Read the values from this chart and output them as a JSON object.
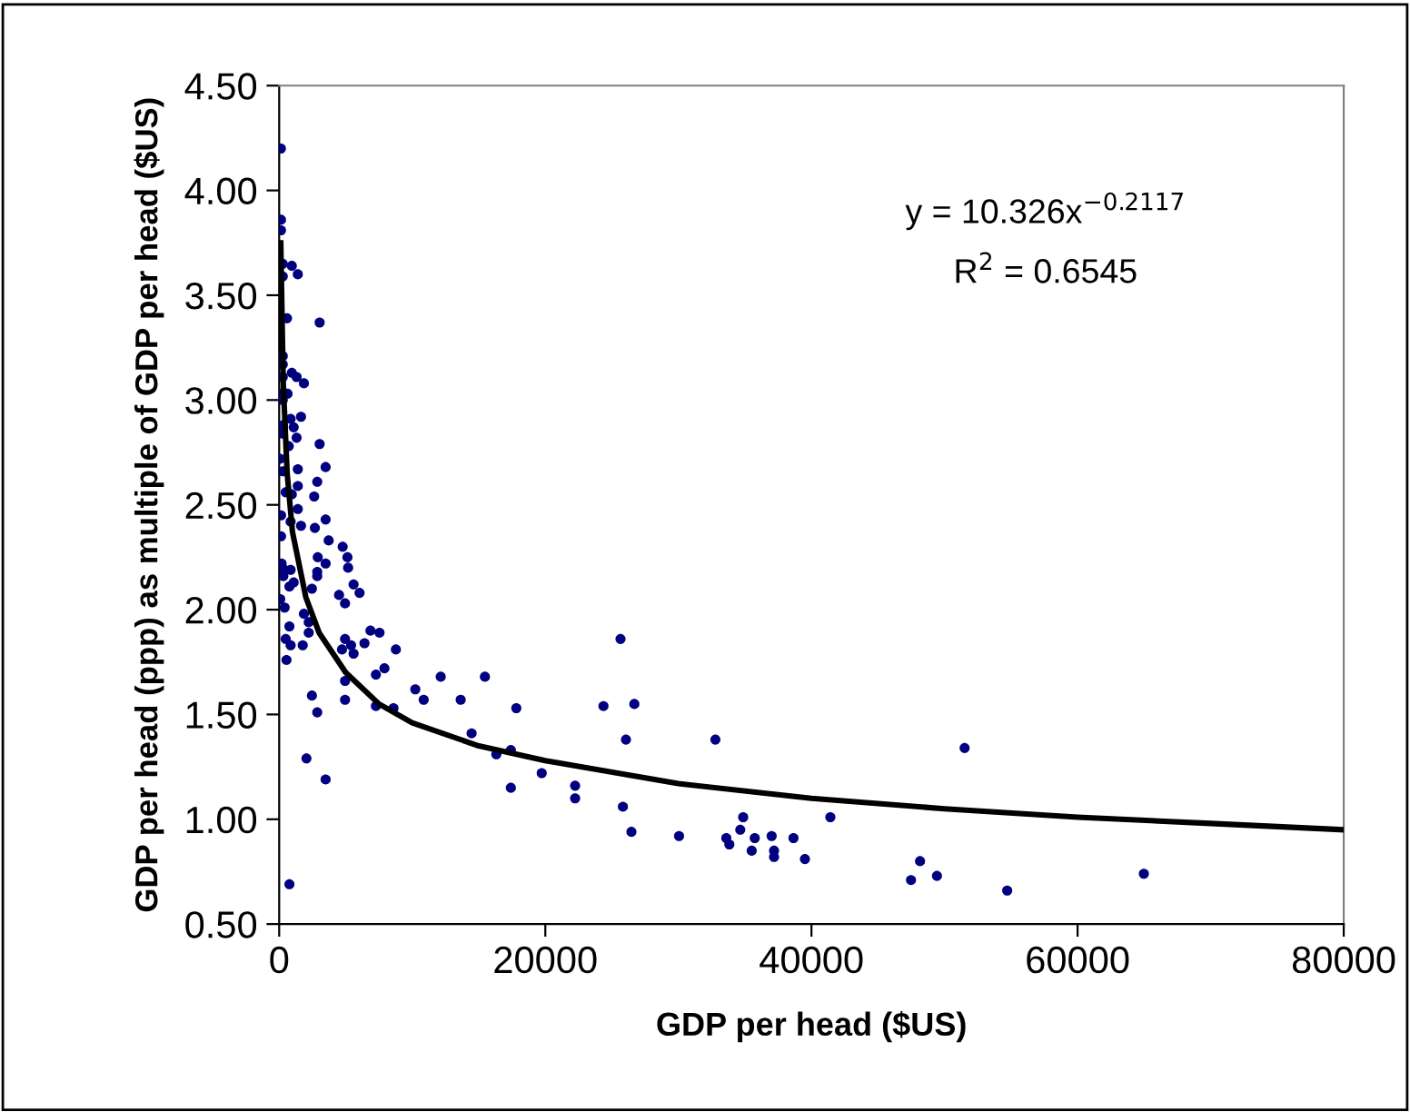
{
  "chart_data": {
    "type": "scatter",
    "xlabel": "GDP per head ($US)",
    "ylabel": "GDP per head (ppp) as multiple of GDP per head ($US)",
    "xlim": [
      0,
      80000
    ],
    "xticks": [
      0,
      20000,
      40000,
      60000,
      80000
    ],
    "ylim": [
      0.5,
      4.5
    ],
    "yticks": [
      {
        "value": 0.5,
        "label": "0.50"
      },
      {
        "value": 1.0,
        "label": "1.00"
      },
      {
        "value": 1.5,
        "label": "1.50"
      },
      {
        "value": 2.0,
        "label": "2.00"
      },
      {
        "value": 2.5,
        "label": "2.50"
      },
      {
        "value": 3.0,
        "label": "3.00"
      },
      {
        "value": 3.5,
        "label": "3.50"
      },
      {
        "value": 4.0,
        "label": "4.00"
      },
      {
        "value": 4.5,
        "label": "4.50"
      }
    ],
    "grid": false,
    "legend": false,
    "marker": "circle",
    "annotations": [
      "y = 10.326x$^{−0.2117}$",
      "R$^{2}$ = 0.6545"
    ],
    "series": [
      {
        "color": "#000080",
        "x": [
          130,
          136,
          136,
          270,
          950,
          1400,
          270,
          590,
          3040,
          270,
          270,
          270,
          950,
          1310,
          1860,
          40,
          630,
          270,
          860,
          1640,
          270,
          270,
          1090,
          1310,
          720,
          3040,
          80,
          3490,
          270,
          1400,
          2860,
          1400,
          490,
          2630,
          950,
          140,
          1400,
          3490,
          860,
          1640,
          2680,
          3720,
          140,
          4770,
          5130,
          5180,
          2900,
          3490,
          2860,
          2860,
          180,
          410,
          860,
          310,
          1090,
          770,
          2460,
          5590,
          6040,
          4500,
          4950,
          80,
          410,
          1860,
          2220,
          770,
          2220,
          6860,
          7540,
          490,
          860,
          4950,
          6410,
          5400,
          4720,
          5590,
          8770,
          1770,
          550,
          7910,
          7270,
          4950,
          10230,
          12140,
          15460,
          10860,
          13640,
          4950,
          2460,
          7270,
          8590,
          2860,
          17820,
          24370,
          14460,
          16320,
          17410,
          2050,
          19730,
          3490,
          17410,
          22240,
          22240,
          770,
          25650,
          26690,
          26060,
          32780,
          51510,
          25830,
          26470,
          30050,
          33600,
          33830,
          34650,
          34870,
          35740,
          35510,
          37010,
          37190,
          37190,
          38650,
          39510,
          41420,
          48160,
          47480,
          49430,
          54710,
          64980
        ],
        "values": [
          4.2,
          3.86,
          3.81,
          3.65,
          3.64,
          3.6,
          3.59,
          3.39,
          3.37,
          3.21,
          3.17,
          3.11,
          3.13,
          3.11,
          3.08,
          3.03,
          3.03,
          3.0,
          2.91,
          2.92,
          2.88,
          2.84,
          2.87,
          2.82,
          2.78,
          2.79,
          2.72,
          2.68,
          2.66,
          2.67,
          2.61,
          2.59,
          2.56,
          2.54,
          2.55,
          2.45,
          2.48,
          2.43,
          2.42,
          2.4,
          2.39,
          2.33,
          2.35,
          2.3,
          2.25,
          2.2,
          2.25,
          2.22,
          2.18,
          2.16,
          2.22,
          2.19,
          2.19,
          2.16,
          2.13,
          2.11,
          2.1,
          2.12,
          2.08,
          2.07,
          2.03,
          2.05,
          2.01,
          1.98,
          1.94,
          1.92,
          1.89,
          1.9,
          1.89,
          1.86,
          1.83,
          1.86,
          1.84,
          1.83,
          1.81,
          1.79,
          1.81,
          1.83,
          1.76,
          1.72,
          1.69,
          1.66,
          1.62,
          1.68,
          1.68,
          1.57,
          1.57,
          1.57,
          1.59,
          1.54,
          1.53,
          1.51,
          1.53,
          1.54,
          1.41,
          1.31,
          1.33,
          1.29,
          1.22,
          1.19,
          1.15,
          1.16,
          1.1,
          0.69,
          1.86,
          1.55,
          1.38,
          1.38,
          1.34,
          1.06,
          0.94,
          0.92,
          0.91,
          0.88,
          0.95,
          1.01,
          0.91,
          0.85,
          0.92,
          0.85,
          0.82,
          0.91,
          0.81,
          1.01,
          0.8,
          0.71,
          0.73,
          0.66,
          0.74
        ]
      },
      {
        "type": "line",
        "color": "#000000",
        "marker": "none",
        "x": [
          120,
          300,
          600,
          1000,
          2000,
          3000,
          5000,
          7500,
          10000,
          15000,
          20000,
          30000,
          40000,
          50000,
          60000,
          70000,
          80000
        ],
        "values": [
          3.75,
          3.09,
          2.65,
          2.37,
          2.06,
          1.89,
          1.7,
          1.55,
          1.46,
          1.35,
          1.28,
          1.17,
          1.1,
          1.05,
          1.01,
          0.98,
          0.95
        ]
      }
    ]
  }
}
